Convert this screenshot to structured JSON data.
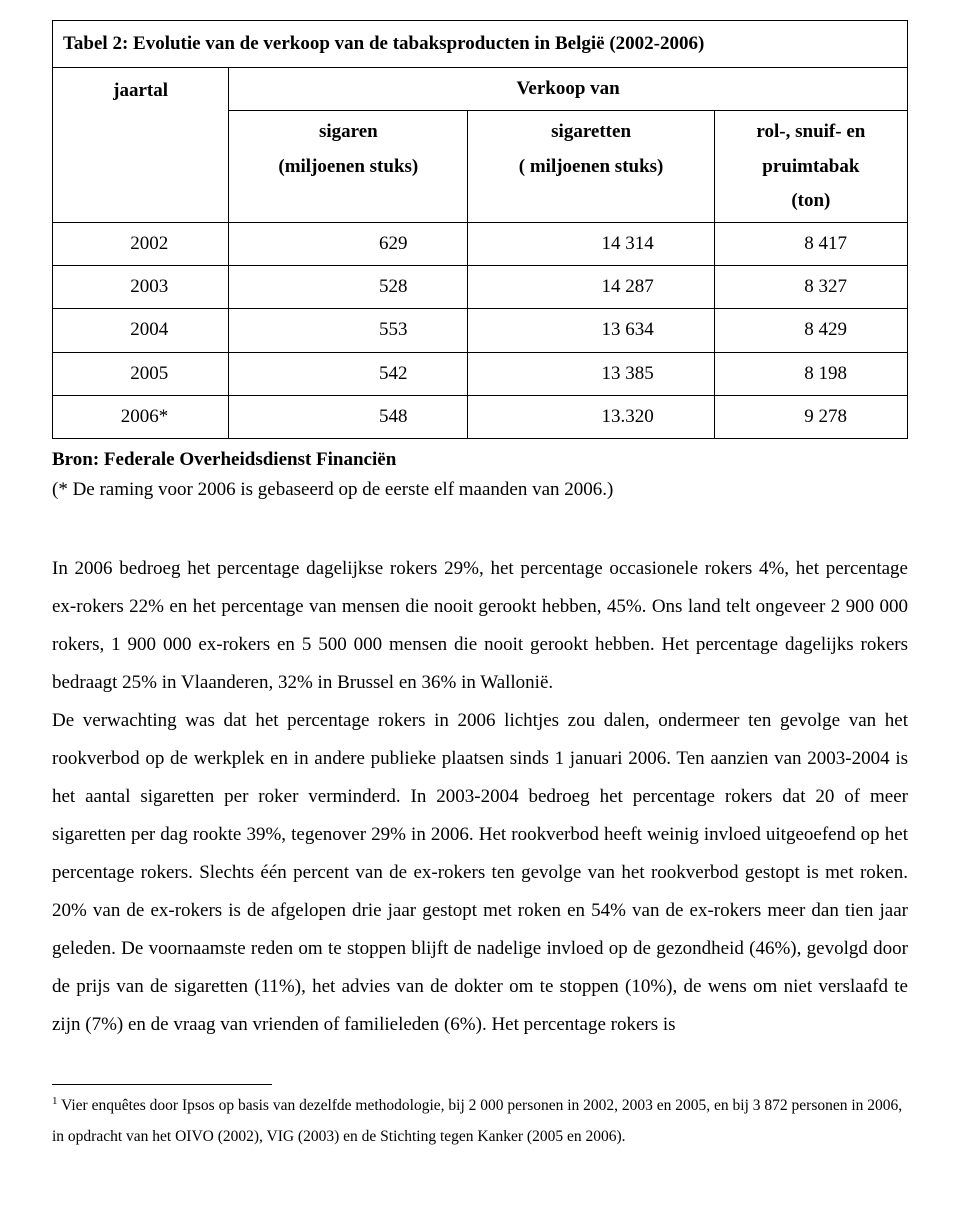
{
  "table": {
    "title": "Tabel 2: Evolutie van de verkoop van de tabaksproducten in België (2002-2006)",
    "header_row1": {
      "jaartal": "jaartal",
      "verkoop_van": "Verkoop van"
    },
    "header_row2": {
      "sigaren_line1": "sigaren",
      "sigaren_line2": "(miljoenen stuks)",
      "sigaretten_line1": "sigaretten",
      "sigaretten_line2": "( miljoenen stuks)",
      "rol_line1": "rol-, snuif- en",
      "rol_line2": "pruimtabak",
      "rol_line3": "(ton)"
    },
    "rows": [
      {
        "year": "2002",
        "sigaren": "629",
        "sigaretten": "14 314",
        "rol": "8 417"
      },
      {
        "year": "2003",
        "sigaren": "528",
        "sigaretten": "14 287",
        "rol": "8 327"
      },
      {
        "year": "2004",
        "sigaren": "553",
        "sigaretten": "13 634",
        "rol": "8 429"
      },
      {
        "year": "2005",
        "sigaren": "542",
        "sigaretten": "13 385",
        "rol": "8 198"
      },
      {
        "year": "2006*",
        "sigaren": "548",
        "sigaretten": "13.320",
        "rol": "9 278"
      }
    ]
  },
  "source": "Bron: Federale Overheidsdienst Financiën",
  "source_note": "(* De raming voor 2006 is gebaseerd op de eerste elf maanden van 2006.)",
  "body": "In 2006 bedroeg het percentage dagelijkse rokers 29%, het percentage occasionele rokers 4%, het percentage ex-rokers 22% en het percentage van mensen die nooit gerookt hebben, 45%. Ons land telt ongeveer 2 900 000 rokers, 1 900 000 ex-rokers en 5 500 000 mensen die nooit gerookt hebben. Het percentage dagelijks rokers bedraagt 25% in Vlaanderen, 32% in Brussel en 36% in Wallonië.\nDe verwachting was dat het percentage rokers in 2006 lichtjes zou dalen, ondermeer ten gevolge van het rookverbod op de werkplek en in andere publieke plaatsen sinds 1 januari 2006. Ten aanzien van 2003-2004 is het aantal sigaretten per roker verminderd. In 2003-2004 bedroeg het percentage rokers dat 20 of meer sigaretten per dag rookte 39%, tegenover 29% in 2006.  Het rookverbod heeft weinig invloed uitgeoefend op het percentage rokers. Slechts één percent van de ex-rokers ten gevolge van het rookverbod gestopt is met roken. 20% van de ex-rokers is de afgelopen drie jaar gestopt met roken en 54% van de ex-rokers meer dan tien jaar geleden. De voornaamste reden om te stoppen blijft de nadelige invloed op de gezondheid (46%), gevolgd door de prijs van de sigaretten (11%), het advies van de dokter om te stoppen (10%), de wens om niet verslaafd te zijn (7%) en de vraag van vrienden of familieleden (6%). Het percentage rokers is",
  "footnote": {
    "marker": "1",
    "text": " Vier enquêtes door Ipsos op basis van dezelfde methodologie, bij 2 000 personen in 2002, 2003 en 2005, en bij 3 872 personen in 2006, in opdracht van het OIVO (2002), VIG (2003) en de Stichting tegen Kanker (2005 en 2006)."
  }
}
